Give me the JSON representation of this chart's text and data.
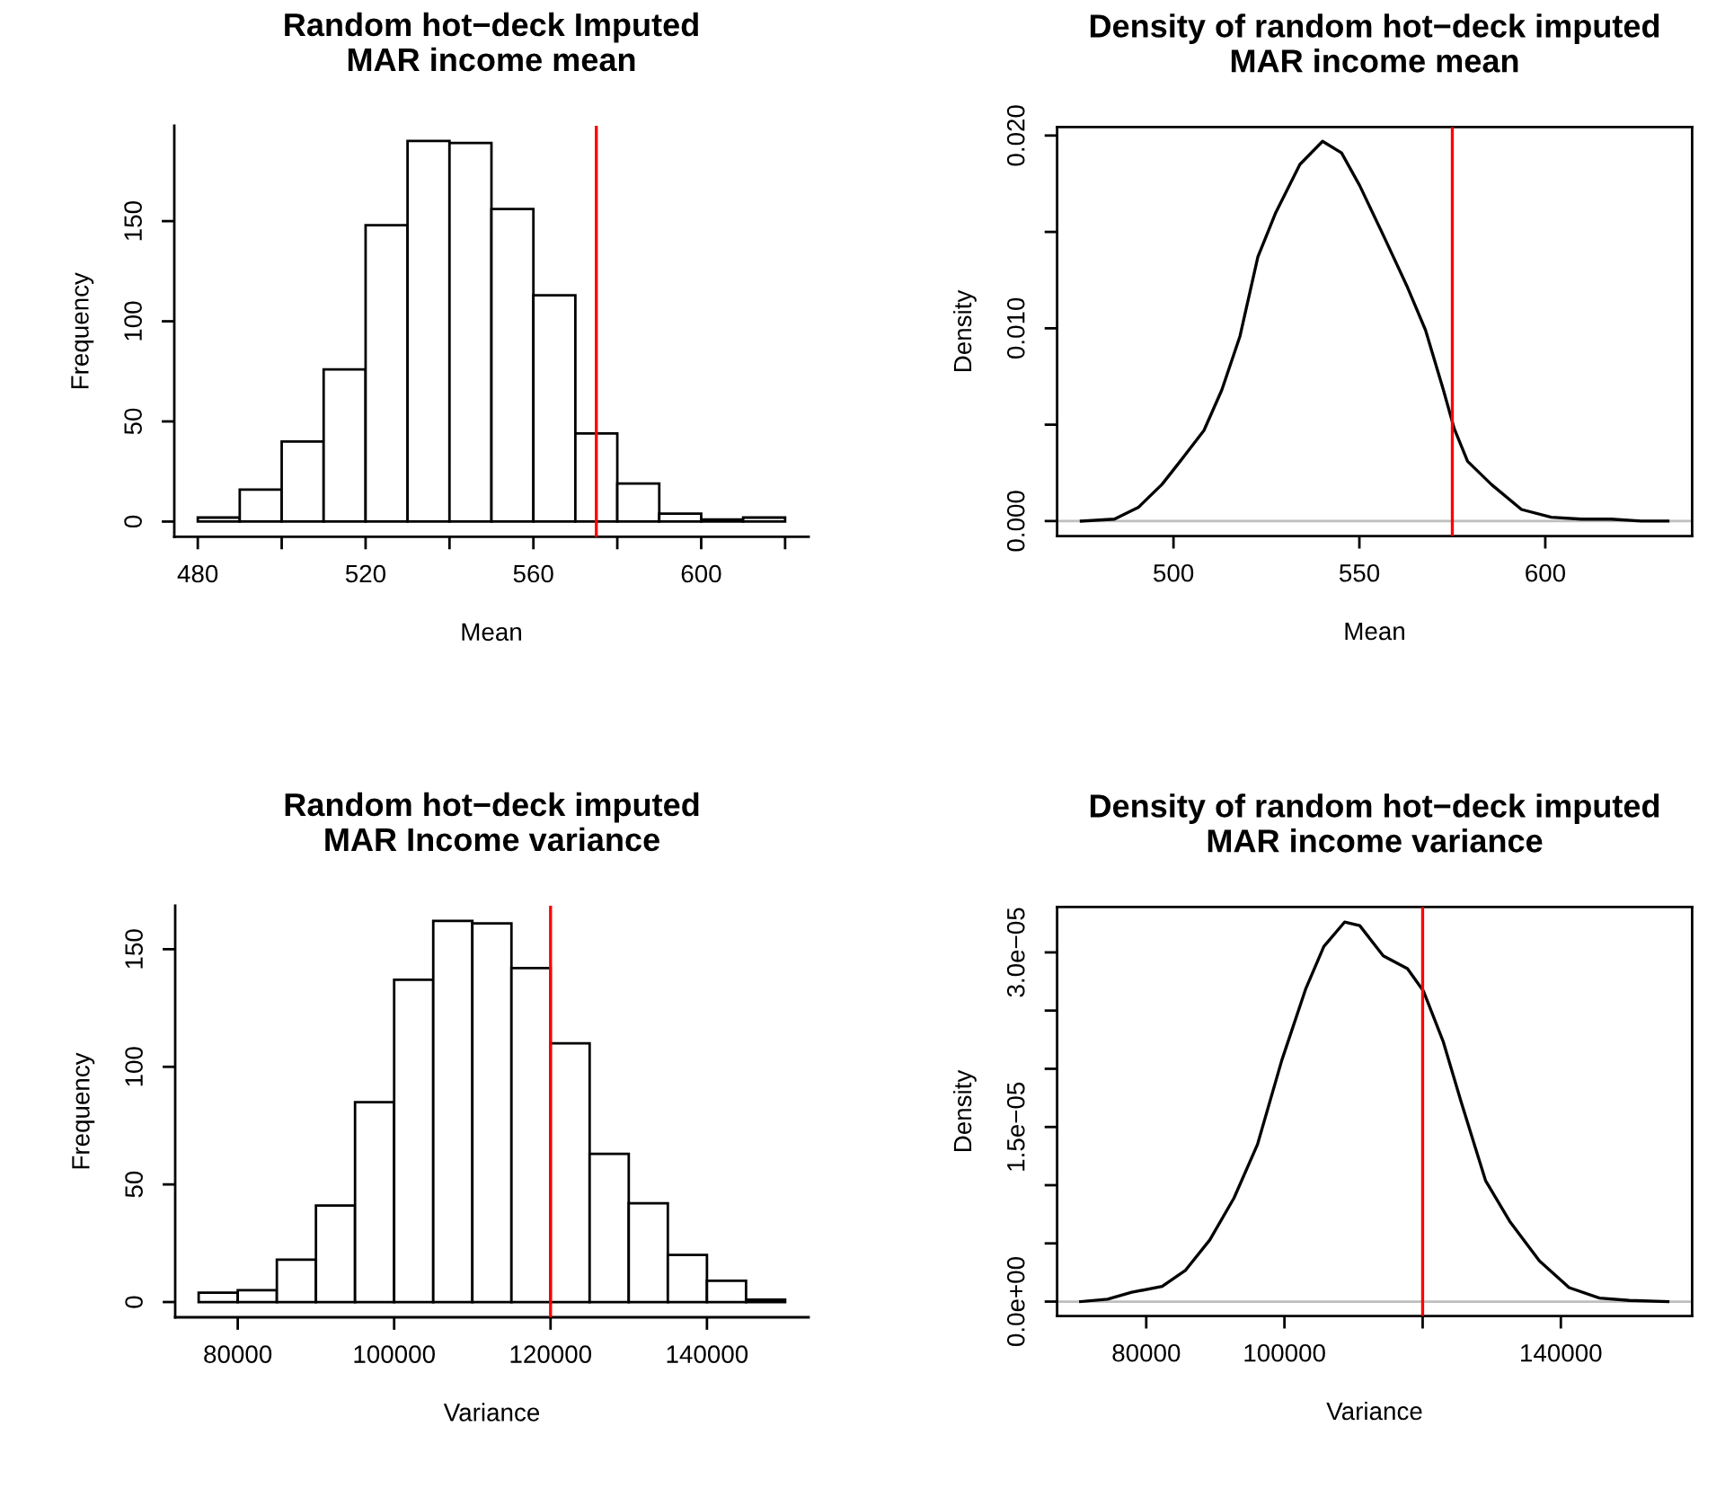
{
  "chart_data": [
    {
      "type": "histogram",
      "title": "Random hot−deck Imputed\nMAR income mean",
      "xlabel": "Mean",
      "ylabel": "Frequency",
      "bins": [
        480,
        490,
        500,
        510,
        520,
        530,
        540,
        550,
        560,
        570,
        580,
        590,
        600,
        610,
        620
      ],
      "values": [
        2,
        16,
        40,
        76,
        148,
        190,
        189,
        156,
        113,
        44,
        19,
        4,
        1,
        2
      ],
      "color": "#ffffff",
      "xlim": [
        474.4,
        625.6
      ],
      "ylim": [
        -7.6,
        197.6
      ],
      "xticks": [
        480,
        {
          "value": 500,
          "label": null
        },
        520,
        {
          "value": 540,
          "label": null
        },
        560,
        {
          "value": 580,
          "label": null
        },
        600,
        {
          "value": 620,
          "label": null
        }
      ],
      "yticks": [
        0,
        50,
        100,
        150
      ],
      "ref_lines": [
        {
          "axis": "x",
          "value": 575,
          "color": "#ff0000"
        }
      ],
      "grid": false
    },
    {
      "type": "line",
      "title": "Density of random hot−deck imputed\nMAR income mean",
      "xlabel": "Mean",
      "ylabel": "Density",
      "color": "#000000",
      "x": [
        475.2,
        484.1,
        490.5,
        496.9,
        501.8,
        508.2,
        513.0,
        517.9,
        522.7,
        527.5,
        534.0,
        540.1,
        545.2,
        550.1,
        556.5,
        563.0,
        567.8,
        572.6,
        575.5,
        579.1,
        585.5,
        593.6,
        601.6,
        609.7,
        617.7,
        625.8,
        633.0
      ],
      "values": [
        0.0,
        0.0001,
        0.0007,
        0.0019,
        0.0031,
        0.0047,
        0.0068,
        0.0096,
        0.0137,
        0.016,
        0.0185,
        0.0197,
        0.0191,
        0.0174,
        0.0148,
        0.0121,
        0.0099,
        0.0068,
        0.0048,
        0.0031,
        0.0019,
        0.0006,
        0.0002,
        0.0001,
        0.0001,
        0.0,
        0.0
      ],
      "xlim": [
        468.7,
        639.5
      ],
      "ylim": [
        -0.00078,
        0.02044
      ],
      "xticks": [
        500,
        550,
        600
      ],
      "yticks": [
        {
          "value": 0,
          "label": "0.000"
        },
        {
          "value": 0.005,
          "label": null
        },
        {
          "value": 0.01,
          "label": "0.010"
        },
        {
          "value": 0.015,
          "label": null
        },
        {
          "value": 0.02,
          "label": "0.020"
        }
      ],
      "ref_lines": [
        {
          "axis": "y",
          "value": 0,
          "color": "#bebebe"
        },
        {
          "axis": "x",
          "value": 575,
          "color": "#ff0000"
        }
      ],
      "grid": false
    },
    {
      "type": "histogram",
      "title": "Random hot−deck imputed\nMAR Income variance",
      "xlabel": "Variance",
      "ylabel": "Frequency",
      "bins": [
        75000,
        80000,
        85000,
        90000,
        95000,
        100000,
        105000,
        110000,
        115000,
        120000,
        125000,
        130000,
        135000,
        140000,
        145000,
        150000
      ],
      "values": [
        4,
        5,
        18,
        41,
        85,
        137,
        162,
        161,
        142,
        110,
        63,
        42,
        20,
        9,
        1
      ],
      "color": "#ffffff",
      "xlim": [
        72000,
        153000
      ],
      "ylim": [
        -6.48,
        168.48
      ],
      "xticks": [
        80000,
        100000,
        120000,
        140000
      ],
      "yticks": [
        0,
        50,
        100,
        150
      ],
      "ref_lines": [
        {
          "axis": "x",
          "value": 120000,
          "color": "#ff0000"
        }
      ],
      "grid": false
    },
    {
      "type": "line",
      "title": "Density of random hot−deck imputed\nMAR income variance",
      "xlabel": "Variance",
      "ylabel": "Density",
      "color": "#000000",
      "x": [
        70500,
        74400,
        77900,
        82300,
        85700,
        89200,
        92700,
        96100,
        99600,
        103100,
        105700,
        108700,
        110900,
        114300,
        117800,
        120100,
        123000,
        125600,
        129100,
        132600,
        136900,
        141200,
        145600,
        149900,
        155500
      ],
      "values": [
        0.0,
        2e-07,
        8e-07,
        1.3e-06,
        2.7e-06,
        5.3e-06,
        8.9e-06,
        1.35e-05,
        2.07e-05,
        2.69e-05,
        3.05e-05,
        3.26e-05,
        3.23e-05,
        2.97e-05,
        2.86e-05,
        2.67e-05,
        2.23e-05,
        1.71e-05,
        1.04e-05,
        6.9e-06,
        3.5e-06,
        1.2e-06,
        3e-07,
        1e-07,
        0.0
      ],
      "xlim": [
        67100,
        159000
      ],
      "ylim": [
        -1.24e-06,
        3.39e-05
      ],
      "xticks": [
        80000,
        100000,
        {
          "value": 120000,
          "label": null
        },
        140000
      ],
      "yticks": [
        {
          "value": 0,
          "label": "0.0e+00"
        },
        {
          "value": 5e-06,
          "label": null
        },
        {
          "value": 1e-05,
          "label": null
        },
        {
          "value": 1.5e-05,
          "label": "1.5e−05"
        },
        {
          "value": 2e-05,
          "label": null
        },
        {
          "value": 2.5e-05,
          "label": null
        },
        {
          "value": 3e-05,
          "label": "3.0e−05"
        }
      ],
      "ref_lines": [
        {
          "axis": "y",
          "value": 0,
          "color": "#bebebe"
        },
        {
          "axis": "x",
          "value": 120000,
          "color": "#ff0000"
        }
      ],
      "grid": false
    }
  ]
}
